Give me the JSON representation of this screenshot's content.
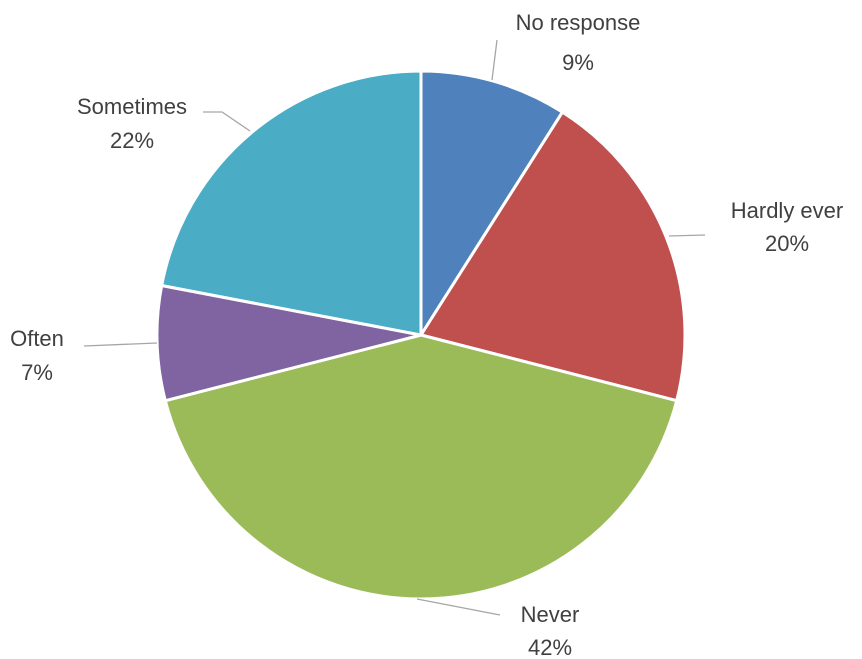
{
  "chart_data": {
    "type": "pie",
    "title": "",
    "slices": [
      {
        "label": "No response",
        "value": 9,
        "display": "9%",
        "color": "#4f81bd"
      },
      {
        "label": "Hardly ever",
        "value": 20,
        "display": "20%",
        "color": "#c0504d"
      },
      {
        "label": "Never",
        "value": 42,
        "display": "42%",
        "color": "#9bbb59"
      },
      {
        "label": "Often",
        "value": 7,
        "display": "7%",
        "color": "#8064a2"
      },
      {
        "label": "Sometimes",
        "value": 22,
        "display": "22%",
        "color": "#4bacc6"
      }
    ],
    "start_angle_deg": 0,
    "direction": "clockwise",
    "legend": "none",
    "data_labels": "outside-with-leader-lines"
  }
}
